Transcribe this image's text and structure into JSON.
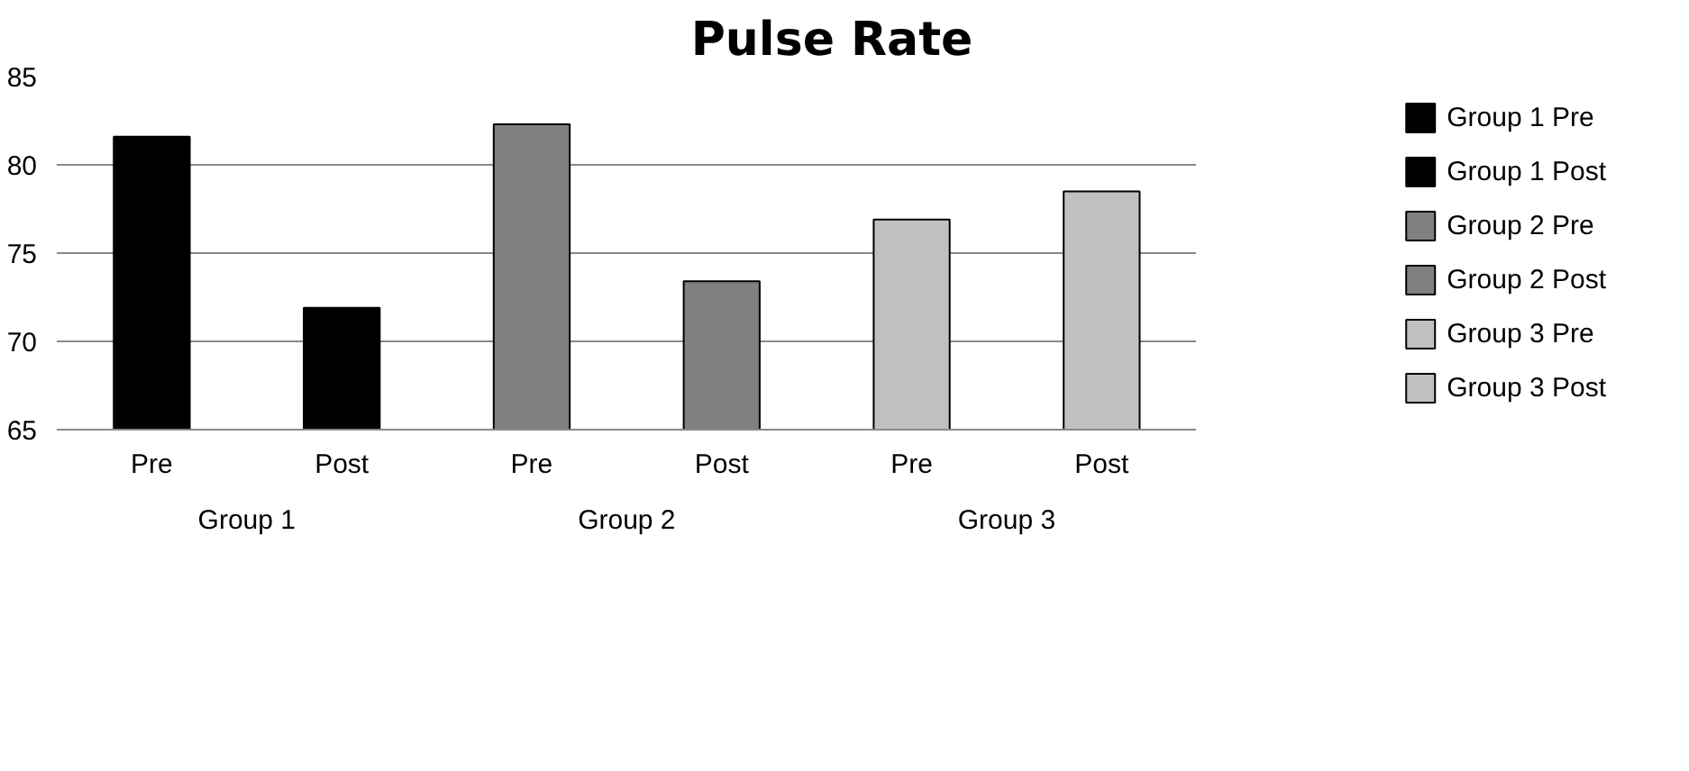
{
  "chart_data": {
    "type": "bar",
    "title": "Pulse Rate",
    "categories": [
      "Pre",
      "Post",
      "Pre",
      "Post",
      "Pre",
      "Post"
    ],
    "annotations": [
      "Group 1",
      "Group 2",
      "Group 3"
    ],
    "series": [
      {
        "name": "Group 1 Pre",
        "color": "#000000",
        "values": [
          81.6,
          null,
          null,
          null,
          null,
          null
        ]
      },
      {
        "name": "Group 1 Post",
        "color": "#000000",
        "values": [
          null,
          71.9,
          null,
          null,
          null,
          null
        ]
      },
      {
        "name": "Group 2 Pre",
        "color": "#808080",
        "values": [
          null,
          null,
          82.3,
          null,
          null,
          null
        ]
      },
      {
        "name": "Group 2 Post",
        "color": "#808080",
        "values": [
          null,
          null,
          null,
          73.4,
          null,
          null
        ]
      },
      {
        "name": "Group 3 Pre",
        "color": "#c0c0c0",
        "values": [
          null,
          null,
          null,
          null,
          76.9,
          null
        ]
      },
      {
        "name": "Group 3 Post",
        "color": "#c0c0c0",
        "values": [
          null,
          null,
          null,
          null,
          null,
          78.5
        ]
      }
    ],
    "stacked": true,
    "ylim": [
      65,
      85
    ],
    "yticks": [
      65,
      70,
      75,
      80,
      85
    ],
    "grid": "y",
    "legend": "right"
  }
}
